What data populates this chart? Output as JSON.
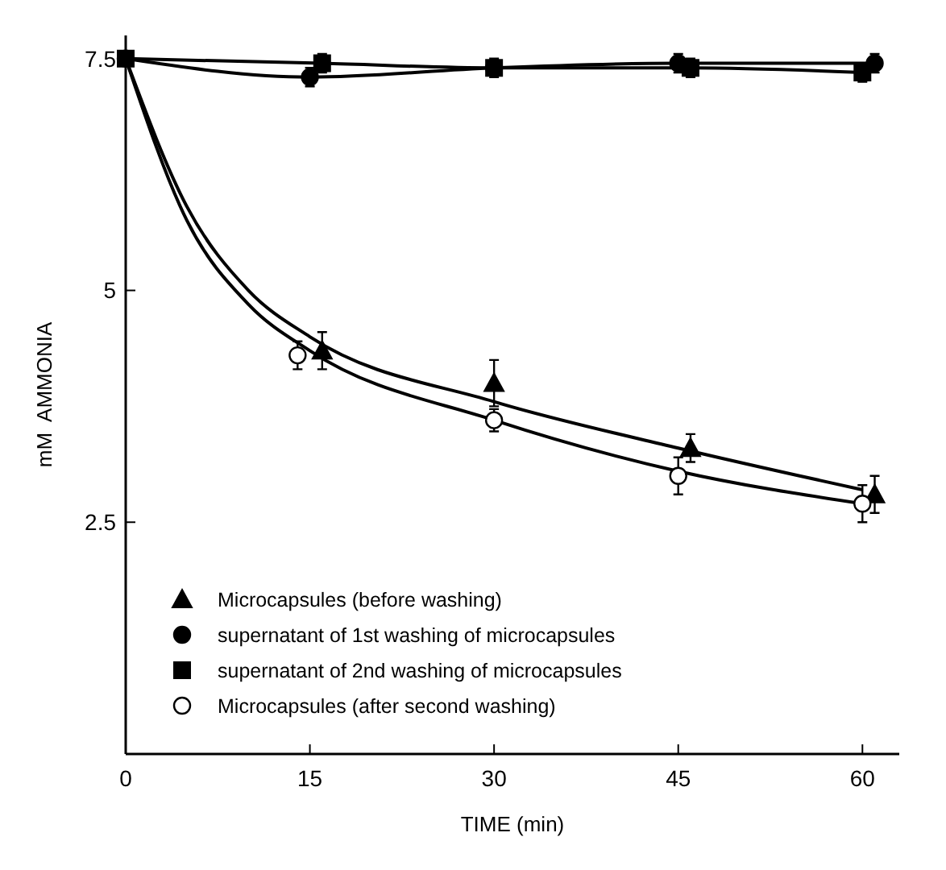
{
  "chart_data": {
    "type": "line",
    "xlabel": "TIME (min)",
    "ylabel": "mM  AMMONIA",
    "xlim": [
      0,
      63
    ],
    "ylim": [
      0,
      7.75
    ],
    "xticks": [
      0,
      15,
      30,
      45,
      60
    ],
    "yticks": [
      2.5,
      5,
      7.5
    ],
    "grid": false,
    "legend": "bottom left",
    "series": [
      {
        "color": "#000000",
        "marker": "none",
        "x": [
          0,
          5,
          10,
          15,
          30,
          45,
          60
        ],
        "values": [
          7.5,
          5.9,
          5.0,
          4.5,
          3.8,
          3.3,
          2.85
        ]
      },
      {
        "color": "#000000",
        "marker": "none",
        "x": [
          0,
          5,
          10,
          15,
          30,
          45,
          60
        ],
        "values": [
          7.5,
          5.75,
          4.85,
          4.35,
          3.6,
          3.05,
          2.7
        ]
      },
      {
        "type": "scatter",
        "name": "Microcapsules (before washing)",
        "color": "#000000",
        "marker": "triangle",
        "x": [
          16,
          30,
          46,
          61
        ],
        "values": [
          4.35,
          4.0,
          3.3,
          2.8
        ],
        "errors": [
          0.2,
          0.25,
          0.15,
          0.2
        ]
      },
      {
        "name": "supernatant of 1st washing of microcapsules",
        "color": "#000000",
        "marker": "circle",
        "x": [
          0,
          15,
          30,
          45,
          61
        ],
        "values": [
          7.5,
          7.3,
          7.4,
          7.45,
          7.45
        ],
        "errors": [
          null,
          0.1,
          0.1,
          0.1,
          0.1
        ]
      },
      {
        "name": "supernatant of 2nd washing of microcapsules",
        "color": "#000000",
        "marker": "square",
        "x": [
          0,
          16,
          30,
          46,
          60
        ],
        "values": [
          7.5,
          7.45,
          7.4,
          7.4,
          7.35
        ],
        "errors": [
          null,
          0.1,
          0.08,
          0.1,
          0.1
        ]
      },
      {
        "type": "scatter",
        "name": "Microcapsules (after second washing)",
        "color": "#ffffff",
        "marker": "circle",
        "x": [
          14,
          30,
          45,
          60
        ],
        "values": [
          4.3,
          3.6,
          3.0,
          2.7
        ],
        "errors": [
          0.15,
          0.12,
          0.2,
          0.2
        ]
      }
    ]
  }
}
